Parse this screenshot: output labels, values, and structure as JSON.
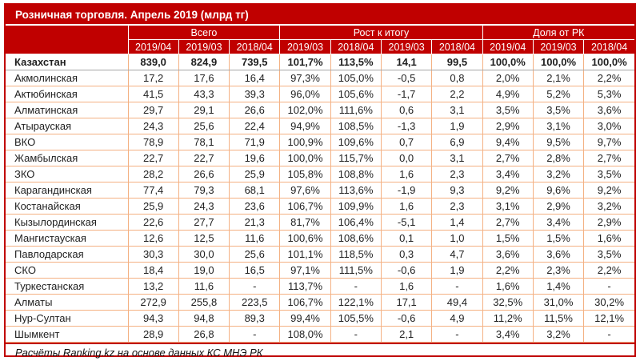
{
  "title": "Розничная торговля. Апрель 2019 (млрд тг)",
  "footer_note": "Расчёты Ranking.kz на основе данных КС МНЭ РК",
  "colors": {
    "header_background": "#C00000",
    "header_text": "#FFFFFF",
    "cell_border": "#F4B183",
    "outer_border": "#C00000",
    "body_text": "#1F1F1F",
    "total_row_divider": "#A6A6A6"
  },
  "chart_data": {
    "type": "table",
    "title": "Розничная торговля. Апрель 2019 (млрд тг)",
    "footer_note": "Расчёты Ranking.kz на основе данных КС МНЭ РК",
    "region_column_header": "",
    "column_groups": [
      {
        "label": "Всего",
        "span": 3
      },
      {
        "label": "Рост к итогу",
        "span": 4
      },
      {
        "label": "Доля от РК",
        "span": 3
      }
    ],
    "sub_headers": [
      "2019/04",
      "2019/03",
      "2018/04",
      "2019/03",
      "2018/04",
      "2019/03",
      "2018/04",
      "2019/04",
      "2019/03",
      "2018/04"
    ],
    "rows": [
      {
        "region": "Казахстан",
        "is_total": true,
        "values": [
          "839,0",
          "824,9",
          "739,5",
          "101,7%",
          "113,5%",
          "14,1",
          "99,5",
          "100,0%",
          "100,0%",
          "100,0%"
        ]
      },
      {
        "region": "Акмолинская",
        "is_total": false,
        "values": [
          "17,2",
          "17,6",
          "16,4",
          "97,3%",
          "105,0%",
          "-0,5",
          "0,8",
          "2,0%",
          "2,1%",
          "2,2%"
        ]
      },
      {
        "region": "Актюбинская",
        "is_total": false,
        "values": [
          "41,5",
          "43,3",
          "39,3",
          "96,0%",
          "105,6%",
          "-1,7",
          "2,2",
          "4,9%",
          "5,2%",
          "5,3%"
        ]
      },
      {
        "region": "Алматинская",
        "is_total": false,
        "values": [
          "29,7",
          "29,1",
          "26,6",
          "102,0%",
          "111,6%",
          "0,6",
          "3,1",
          "3,5%",
          "3,5%",
          "3,6%"
        ]
      },
      {
        "region": "Атырауская",
        "is_total": false,
        "values": [
          "24,3",
          "25,6",
          "22,4",
          "94,9%",
          "108,5%",
          "-1,3",
          "1,9",
          "2,9%",
          "3,1%",
          "3,0%"
        ]
      },
      {
        "region": "ВКО",
        "is_total": false,
        "values": [
          "78,9",
          "78,1",
          "71,9",
          "100,9%",
          "109,6%",
          "0,7",
          "6,9",
          "9,4%",
          "9,5%",
          "9,7%"
        ]
      },
      {
        "region": "Жамбылская",
        "is_total": false,
        "values": [
          "22,7",
          "22,7",
          "19,6",
          "100,0%",
          "115,7%",
          "0,0",
          "3,1",
          "2,7%",
          "2,8%",
          "2,7%"
        ]
      },
      {
        "region": "ЗКО",
        "is_total": false,
        "values": [
          "28,2",
          "26,6",
          "25,9",
          "105,8%",
          "108,8%",
          "1,6",
          "2,3",
          "3,4%",
          "3,2%",
          "3,5%"
        ]
      },
      {
        "region": "Карагандинская",
        "is_total": false,
        "values": [
          "77,4",
          "79,3",
          "68,1",
          "97,6%",
          "113,6%",
          "-1,9",
          "9,3",
          "9,2%",
          "9,6%",
          "9,2%"
        ]
      },
      {
        "region": "Костанайская",
        "is_total": false,
        "values": [
          "25,9",
          "24,3",
          "23,6",
          "106,7%",
          "109,9%",
          "1,6",
          "2,3",
          "3,1%",
          "2,9%",
          "3,2%"
        ]
      },
      {
        "region": "Кызылординская",
        "is_total": false,
        "values": [
          "22,6",
          "27,7",
          "21,3",
          "81,7%",
          "106,4%",
          "-5,1",
          "1,4",
          "2,7%",
          "3,4%",
          "2,9%"
        ]
      },
      {
        "region": "Мангистауская",
        "is_total": false,
        "values": [
          "12,6",
          "12,5",
          "11,6",
          "100,6%",
          "108,6%",
          "0,1",
          "1,0",
          "1,5%",
          "1,5%",
          "1,6%"
        ]
      },
      {
        "region": "Павлодарская",
        "is_total": false,
        "values": [
          "30,3",
          "30,0",
          "25,6",
          "101,1%",
          "118,5%",
          "0,3",
          "4,7",
          "3,6%",
          "3,6%",
          "3,5%"
        ]
      },
      {
        "region": "СКО",
        "is_total": false,
        "values": [
          "18,4",
          "19,0",
          "16,5",
          "97,1%",
          "111,5%",
          "-0,6",
          "1,9",
          "2,2%",
          "2,3%",
          "2,2%"
        ]
      },
      {
        "region": "Туркестанская",
        "is_total": false,
        "values": [
          "13,2",
          "11,6",
          "-",
          "113,7%",
          "-",
          "1,6",
          "-",
          "1,6%",
          "1,4%",
          "-"
        ]
      },
      {
        "region": "Алматы",
        "is_total": false,
        "values": [
          "272,9",
          "255,8",
          "223,5",
          "106,7%",
          "122,1%",
          "17,1",
          "49,4",
          "32,5%",
          "31,0%",
          "30,2%"
        ]
      },
      {
        "region": "Нур-Султан",
        "is_total": false,
        "values": [
          "94,3",
          "94,8",
          "89,3",
          "99,4%",
          "105,5%",
          "-0,6",
          "4,9",
          "11,2%",
          "11,5%",
          "12,1%"
        ]
      },
      {
        "region": "Шымкент",
        "is_total": false,
        "values": [
          "28,9",
          "26,8",
          "-",
          "108,0%",
          "-",
          "2,1",
          "-",
          "3,4%",
          "3,2%",
          "-"
        ]
      }
    ]
  }
}
